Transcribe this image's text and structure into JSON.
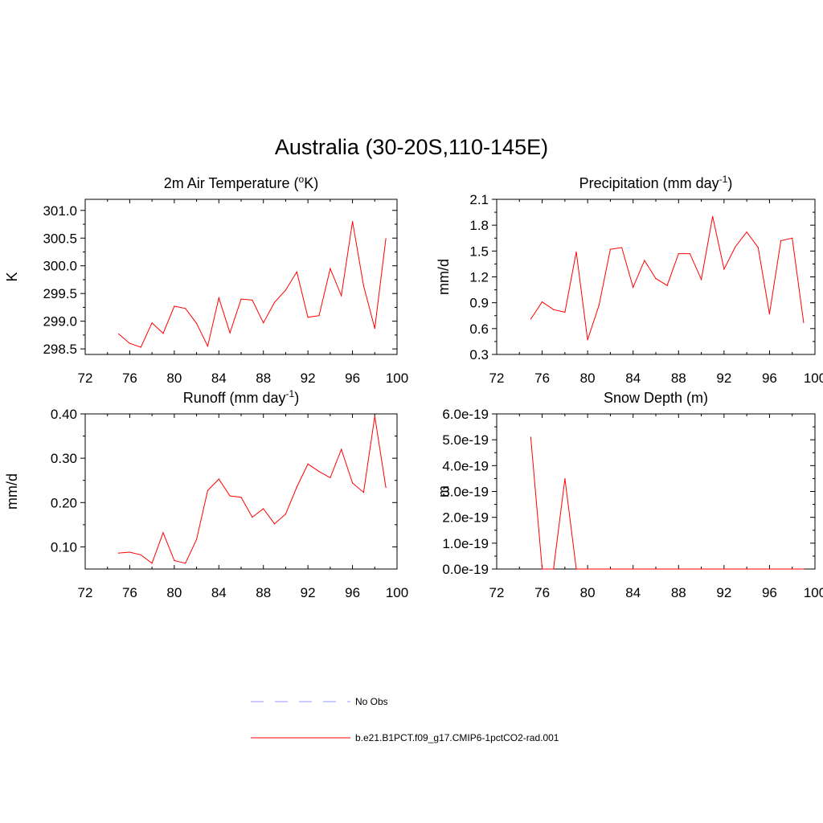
{
  "title": "Australia (30-20S,110-145E)",
  "chart_data": [
    {
      "type": "line",
      "title": "2m Air Temperature (",
      "title_sup": "o",
      "title_after": "K)",
      "ylabel": "K",
      "xlim": [
        72,
        100
      ],
      "ylim": [
        298.4,
        301.2
      ],
      "xticks": [
        72,
        76,
        80,
        84,
        88,
        92,
        96,
        100
      ],
      "yticks": [
        298.5,
        299.0,
        299.5,
        300.0,
        300.5,
        301.0
      ],
      "ytick_labels": [
        "298.5",
        "299.0",
        "299.5",
        "300.0",
        "300.5",
        "301.0"
      ],
      "series": [
        {
          "color": "#ff0000",
          "x": [
            75,
            76,
            77,
            78,
            79,
            80,
            81,
            82,
            83,
            84,
            85,
            86,
            87,
            88,
            89,
            90,
            91,
            92,
            93,
            94,
            95,
            96,
            97,
            98,
            99
          ],
          "y": [
            298.77,
            298.6,
            298.53,
            298.97,
            298.78,
            299.27,
            299.23,
            298.96,
            298.55,
            299.42,
            298.79,
            299.4,
            299.38,
            298.97,
            299.34,
            299.56,
            299.89,
            299.07,
            299.1,
            299.95,
            299.46,
            300.8,
            299.64,
            298.87,
            300.49
          ]
        }
      ]
    },
    {
      "type": "line",
      "title": "Precipitation (mm day",
      "title_sup": "-1",
      "title_after": ")",
      "ylabel": "mm/d",
      "xlim": [
        72,
        100
      ],
      "ylim": [
        0.3,
        2.1
      ],
      "xticks": [
        72,
        76,
        80,
        84,
        88,
        92,
        96,
        100
      ],
      "yticks": [
        0.3,
        0.6,
        0.9,
        1.2,
        1.5,
        1.8,
        2.1
      ],
      "ytick_labels": [
        "0.3",
        "0.6",
        "0.9",
        "1.2",
        "1.5",
        "1.8",
        "2.1"
      ],
      "series": [
        {
          "color": "#ff0000",
          "x": [
            75,
            76,
            77,
            78,
            79,
            80,
            81,
            82,
            83,
            84,
            85,
            86,
            87,
            88,
            89,
            90,
            91,
            92,
            93,
            94,
            95,
            96,
            97,
            98,
            99
          ],
          "y": [
            0.71,
            0.91,
            0.82,
            0.79,
            1.49,
            0.47,
            0.87,
            1.52,
            1.54,
            1.08,
            1.39,
            1.18,
            1.1,
            1.47,
            1.47,
            1.17,
            1.9,
            1.29,
            1.55,
            1.72,
            1.54,
            0.77,
            1.62,
            1.65,
            0.67
          ]
        }
      ]
    },
    {
      "type": "line",
      "title": "Runoff (mm day",
      "title_sup": "-1",
      "title_after": ")",
      "ylabel": "mm/d",
      "xlim": [
        72,
        100
      ],
      "ylim": [
        0.05,
        0.4
      ],
      "xticks": [
        72,
        76,
        80,
        84,
        88,
        92,
        96,
        100
      ],
      "yticks": [
        0.1,
        0.2,
        0.3,
        0.4
      ],
      "ytick_labels": [
        "0.10",
        "0.20",
        "0.30",
        "0.40"
      ],
      "series": [
        {
          "color": "#ff0000",
          "x": [
            75,
            76,
            77,
            78,
            79,
            80,
            81,
            82,
            83,
            84,
            85,
            86,
            87,
            88,
            89,
            90,
            91,
            92,
            93,
            94,
            95,
            96,
            97,
            98,
            99
          ],
          "y": [
            0.086,
            0.088,
            0.082,
            0.063,
            0.132,
            0.069,
            0.063,
            0.117,
            0.227,
            0.253,
            0.215,
            0.212,
            0.167,
            0.186,
            0.152,
            0.174,
            0.235,
            0.287,
            0.27,
            0.256,
            0.32,
            0.244,
            0.223,
            0.395,
            0.234
          ]
        }
      ]
    },
    {
      "type": "line",
      "title": "Snow Depth (m)",
      "title_sup": "",
      "title_after": "",
      "ylabel": "m",
      "xlim": [
        72,
        100
      ],
      "ylim": [
        0,
        6.0
      ],
      "yscale_note": "values in units of 1e-19 m",
      "xticks": [
        72,
        76,
        80,
        84,
        88,
        92,
        96,
        100
      ],
      "yticks": [
        0,
        1,
        2,
        3,
        4,
        5,
        6
      ],
      "ytick_labels": [
        "0.0e-19",
        "1.0e-19",
        "2.0e-19",
        "3.0e-19",
        "4.0e-19",
        "5.0e-19",
        "6.0e-19"
      ],
      "series": [
        {
          "color": "#ff0000",
          "x": [
            75,
            76,
            77,
            78,
            79,
            80,
            81,
            82,
            83,
            84,
            85,
            86,
            87,
            88,
            89,
            90,
            91,
            92,
            93,
            94,
            95,
            96,
            97,
            98,
            99
          ],
          "y": [
            5.1,
            0,
            0,
            3.5,
            0,
            0,
            0,
            0,
            0,
            0,
            0,
            0,
            0,
            0,
            0,
            0,
            0,
            0,
            0,
            0,
            0,
            0,
            0,
            0,
            0
          ]
        }
      ]
    }
  ],
  "legend": [
    {
      "label": "No Obs",
      "color": "#9999ff",
      "style": "dashed"
    },
    {
      "label": "b.e21.B1PCT.f09_g17.CMIP6-1pctCO2-rad.001",
      "color": "#ff0000",
      "style": "solid"
    }
  ]
}
